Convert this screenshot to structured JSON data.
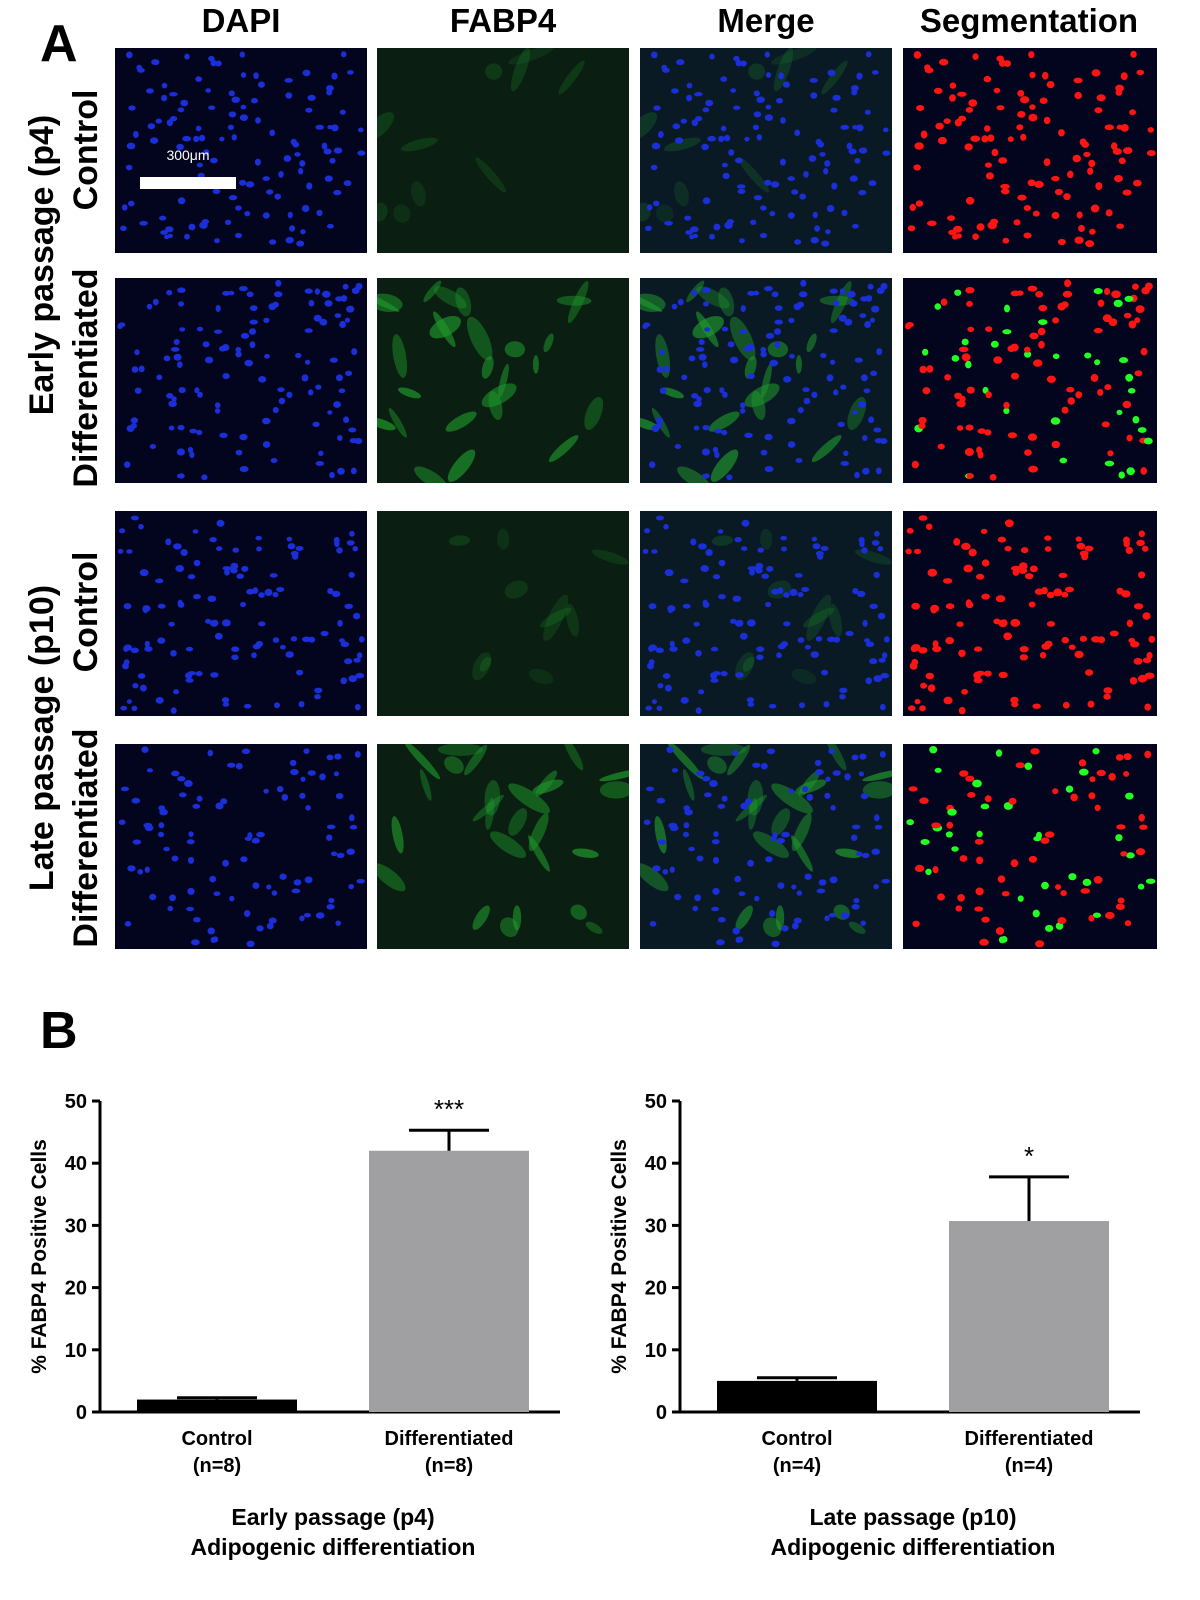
{
  "panel_a": {
    "letter": "A",
    "columns": [
      "DAPI",
      "FABP4",
      "Merge",
      "Segmentation"
    ],
    "passage_labels": [
      "Early passage (p4)",
      "Late passage (p10)"
    ],
    "row_labels": [
      "Control",
      "Differentiated",
      "Control",
      "Differentiated"
    ],
    "scale_bar": "300μm",
    "colors": {
      "background": "#03041e",
      "nucleus": "#1b2fd8",
      "fabp4": "#1f9a2c",
      "positive": "#22ff22",
      "negative": "#ff1414"
    }
  },
  "panel_b": {
    "letter": "B",
    "ylabel": "% FABP4 Positive Cells",
    "colors": {
      "control_bar": "#000000",
      "differentiated_bar": "#a0a0a3"
    }
  },
  "chart_data": [
    {
      "type": "bar",
      "categories": [
        "Control",
        "Differentiated"
      ],
      "category_ns": [
        "(n=8)",
        "(n=8)"
      ],
      "values": [
        2.0,
        42.0
      ],
      "errors": [
        0.3,
        3.3
      ],
      "significance": [
        "",
        "***"
      ],
      "ylabel": "% FABP4 Positive Cells",
      "xlabel_lines": [
        "Early passage (p4)",
        "Adipogenic differentiation"
      ],
      "yticks": [
        0,
        10,
        20,
        30,
        40,
        50
      ],
      "ylim": [
        0,
        50
      ],
      "grid": false
    },
    {
      "type": "bar",
      "categories": [
        "Control",
        "Differentiated"
      ],
      "category_ns": [
        "(n=4)",
        "(n=4)"
      ],
      "values": [
        5.0,
        30.7
      ],
      "errors": [
        0.5,
        7.1
      ],
      "significance": [
        "",
        "*"
      ],
      "ylabel": "% FABP4 Positive Cells",
      "xlabel_lines": [
        "Late passage (p10)",
        "Adipogenic differentiation"
      ],
      "yticks": [
        0,
        10,
        20,
        30,
        40,
        50
      ],
      "ylim": [
        0,
        50
      ],
      "grid": false
    }
  ]
}
